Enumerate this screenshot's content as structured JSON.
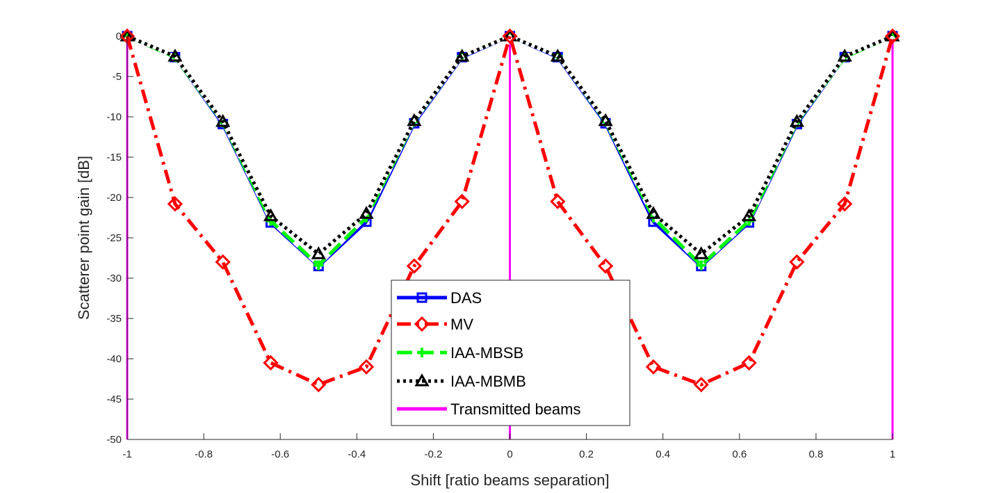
{
  "chart_data": {
    "type": "line",
    "title": "",
    "xlabel": "Shift [ratio beams separation]",
    "ylabel": "Scatterer point gain [dB]",
    "xlim": [
      -1,
      1
    ],
    "ylim": [
      -50,
      0
    ],
    "xticks": [
      -1,
      -0.8,
      -0.6,
      -0.4,
      -0.2,
      0,
      0.2,
      0.4,
      0.6,
      0.8,
      1
    ],
    "xtick_labels": [
      "-1",
      "-0.8",
      "-0.6",
      "-0.4",
      "-0.2",
      "0",
      "0.2",
      "0.4",
      "0.6",
      "0.8",
      "1"
    ],
    "yticks": [
      0,
      -5,
      -10,
      -15,
      -20,
      -25,
      -30,
      -35,
      -40,
      -45,
      -50
    ],
    "ytick_labels": [
      "0",
      "-5",
      "-10",
      "-15",
      "-20",
      "-25",
      "-30",
      "-35",
      "-40",
      "-45",
      "-50"
    ],
    "grid": false,
    "legend_position": "bottom-center",
    "x": [
      -1,
      -0.875,
      -0.75,
      -0.625,
      -0.5,
      -0.375,
      -0.25,
      -0.125,
      0,
      0.125,
      0.25,
      0.375,
      0.5,
      0.625,
      0.75,
      0.875,
      1
    ],
    "series": [
      {
        "name": "DAS",
        "color": "#0000ff",
        "line_style": "solid",
        "marker": "square",
        "values": [
          0,
          -2.6,
          -10.9,
          -23.1,
          -28.5,
          -23.0,
          -10.8,
          -2.6,
          0,
          -2.6,
          -10.8,
          -23.0,
          -28.5,
          -23.1,
          -10.9,
          -2.6,
          0
        ]
      },
      {
        "name": "MV",
        "color": "#ff0000",
        "line_style": "dashdot",
        "marker": "diamond",
        "values": [
          0,
          -20.8,
          -28.0,
          -40.5,
          -43.2,
          -41.0,
          -28.5,
          -20.5,
          0,
          -20.5,
          -28.5,
          -41.0,
          -43.2,
          -40.5,
          -28.0,
          -20.8,
          0
        ]
      },
      {
        "name": "IAA-MBSB",
        "color": "#00ff00",
        "line_style": "dashed",
        "marker": "plus",
        "values": [
          0,
          -2.6,
          -10.7,
          -22.9,
          -28.4,
          -22.5,
          -10.6,
          -2.5,
          0,
          -2.5,
          -10.6,
          -22.5,
          -28.4,
          -22.9,
          -10.7,
          -2.6,
          0
        ]
      },
      {
        "name": "IAA-MBMB",
        "color": "#000000",
        "line_style": "dotted",
        "marker": "triangle",
        "values": [
          0,
          -2.5,
          -10.6,
          -22.3,
          -27.0,
          -22.0,
          -10.5,
          -2.5,
          0,
          -2.5,
          -10.5,
          -22.0,
          -27.0,
          -22.3,
          -10.6,
          -2.5,
          0
        ]
      },
      {
        "name": "Transmitted beams",
        "color": "#ff00ff",
        "line_style": "solid",
        "marker": "none",
        "vertical_lines_at": [
          -1,
          0,
          1
        ]
      }
    ]
  }
}
